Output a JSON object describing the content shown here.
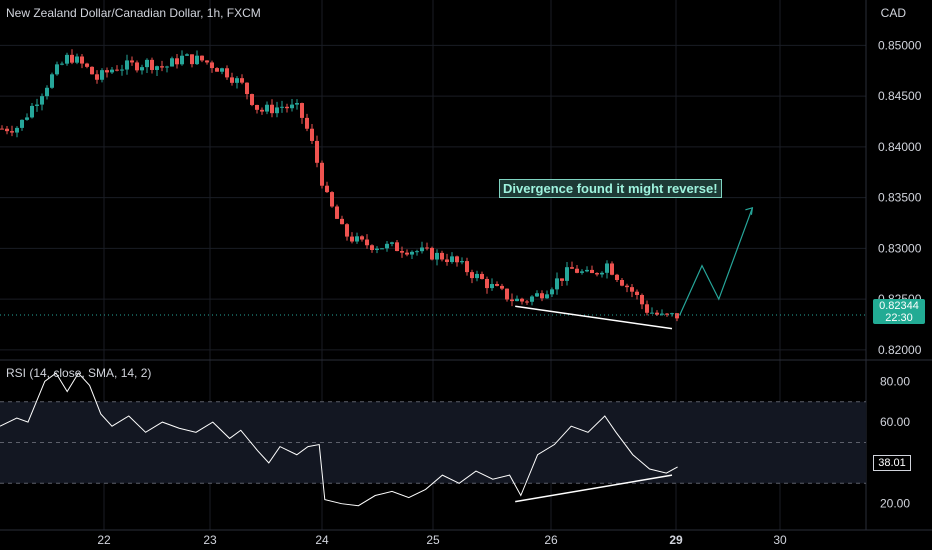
{
  "header": {
    "symbol_title": "New Zealand Dollar/Canadian Dollar, 1h, FXCM",
    "currency": "CAD"
  },
  "annotation": {
    "text": "Divergence found it might reverse!"
  },
  "price_tag": {
    "price": "0.82344",
    "countdown": "22:30"
  },
  "rsi_panel": {
    "title": "RSI (14, close, SMA, 14, 2)",
    "current_label": "38.01"
  },
  "colors": {
    "up": "#26a69a",
    "down": "#ef5350",
    "rsi_band": "#131722",
    "projection": "#26a69a",
    "divergence": "#ffffff"
  },
  "chart_data": [
    {
      "type": "candlestick",
      "title": "New Zealand Dollar/Canadian Dollar, 1h, FXCM",
      "ylabel": "CAD",
      "ylim": [
        0.8195,
        0.8525
      ],
      "x_ticks": [
        "22",
        "23",
        "24",
        "25",
        "26",
        "29",
        "30"
      ],
      "y_ticks": [
        0.82,
        0.825,
        0.83,
        0.835,
        0.84,
        0.845,
        0.85
      ],
      "last_price": 0.82344,
      "close_path": [
        {
          "x": 0.0,
          "y": 0.8418
        },
        {
          "x": 0.3,
          "y": 0.842
        },
        {
          "x": 0.6,
          "y": 0.8445
        },
        {
          "x": 0.9,
          "y": 0.847
        },
        {
          "x": 1.2,
          "y": 0.849
        },
        {
          "x": 1.5,
          "y": 0.8478
        },
        {
          "x": 1.7,
          "y": 0.8467
        },
        {
          "x": 2.0,
          "y": 0.8478
        },
        {
          "x": 2.3,
          "y": 0.848
        },
        {
          "x": 2.6,
          "y": 0.8483
        },
        {
          "x": 2.9,
          "y": 0.8478
        },
        {
          "x": 3.2,
          "y": 0.8488
        },
        {
          "x": 3.6,
          "y": 0.8485
        },
        {
          "x": 4.0,
          "y": 0.8474
        },
        {
          "x": 4.3,
          "y": 0.846
        },
        {
          "x": 4.6,
          "y": 0.8435
        },
        {
          "x": 5.0,
          "y": 0.844
        },
        {
          "x": 5.3,
          "y": 0.8437
        },
        {
          "x": 5.5,
          "y": 0.841
        },
        {
          "x": 5.8,
          "y": 0.835
        },
        {
          "x": 6.1,
          "y": 0.8315
        },
        {
          "x": 6.4,
          "y": 0.8305
        },
        {
          "x": 6.8,
          "y": 0.8302
        },
        {
          "x": 7.2,
          "y": 0.83
        },
        {
          "x": 7.6,
          "y": 0.8295
        },
        {
          "x": 8.0,
          "y": 0.829
        },
        {
          "x": 8.4,
          "y": 0.8275
        },
        {
          "x": 8.8,
          "y": 0.826
        },
        {
          "x": 9.1,
          "y": 0.825
        },
        {
          "x": 9.3,
          "y": 0.8248
        },
        {
          "x": 9.6,
          "y": 0.8255
        },
        {
          "x": 9.9,
          "y": 0.8268
        },
        {
          "x": 10.2,
          "y": 0.828
        },
        {
          "x": 10.5,
          "y": 0.8272
        },
        {
          "x": 10.8,
          "y": 0.8285
        },
        {
          "x": 11.0,
          "y": 0.8272
        },
        {
          "x": 11.3,
          "y": 0.8255
        },
        {
          "x": 11.5,
          "y": 0.824
        },
        {
          "x": 11.8,
          "y": 0.8232
        },
        {
          "x": 12.1,
          "y": 0.8234
        }
      ],
      "projection": [
        {
          "x": 12.1,
          "y": 0.8234
        },
        {
          "x": 12.5,
          "y": 0.8283
        },
        {
          "x": 12.8,
          "y": 0.825
        },
        {
          "x": 13.4,
          "y": 0.834
        }
      ],
      "divergence_line": [
        {
          "x": 9.2,
          "y": 0.8243
        },
        {
          "x": 12.0,
          "y": 0.8221
        }
      ]
    },
    {
      "type": "line",
      "title": "RSI (14, close, SMA, 14, 2)",
      "ylim": [
        12,
        88
      ],
      "y_ticks": [
        20.0,
        40.0,
        60.0,
        80.0
      ],
      "band": [
        30,
        70
      ],
      "midline": 50,
      "last_value": 38.01,
      "values": [
        {
          "x": 0.0,
          "y": 58
        },
        {
          "x": 0.3,
          "y": 62
        },
        {
          "x": 0.5,
          "y": 60
        },
        {
          "x": 0.8,
          "y": 80
        },
        {
          "x": 1.0,
          "y": 84
        },
        {
          "x": 1.2,
          "y": 75
        },
        {
          "x": 1.4,
          "y": 84
        },
        {
          "x": 1.6,
          "y": 78
        },
        {
          "x": 1.8,
          "y": 64
        },
        {
          "x": 2.0,
          "y": 58
        },
        {
          "x": 2.3,
          "y": 63
        },
        {
          "x": 2.6,
          "y": 55
        },
        {
          "x": 2.9,
          "y": 60
        },
        {
          "x": 3.2,
          "y": 57
        },
        {
          "x": 3.5,
          "y": 55
        },
        {
          "x": 3.8,
          "y": 60
        },
        {
          "x": 4.1,
          "y": 52
        },
        {
          "x": 4.3,
          "y": 56
        },
        {
          "x": 4.6,
          "y": 46
        },
        {
          "x": 4.8,
          "y": 40
        },
        {
          "x": 5.0,
          "y": 48
        },
        {
          "x": 5.3,
          "y": 44
        },
        {
          "x": 5.5,
          "y": 48
        },
        {
          "x": 5.7,
          "y": 49
        },
        {
          "x": 5.8,
          "y": 22
        },
        {
          "x": 6.1,
          "y": 20
        },
        {
          "x": 6.4,
          "y": 19
        },
        {
          "x": 6.7,
          "y": 24
        },
        {
          "x": 7.0,
          "y": 26
        },
        {
          "x": 7.3,
          "y": 23
        },
        {
          "x": 7.6,
          "y": 27
        },
        {
          "x": 7.9,
          "y": 34
        },
        {
          "x": 8.2,
          "y": 30
        },
        {
          "x": 8.5,
          "y": 36
        },
        {
          "x": 8.8,
          "y": 32
        },
        {
          "x": 9.1,
          "y": 34
        },
        {
          "x": 9.3,
          "y": 24
        },
        {
          "x": 9.6,
          "y": 44
        },
        {
          "x": 9.9,
          "y": 49
        },
        {
          "x": 10.2,
          "y": 58
        },
        {
          "x": 10.5,
          "y": 55
        },
        {
          "x": 10.8,
          "y": 63
        },
        {
          "x": 11.0,
          "y": 55
        },
        {
          "x": 11.3,
          "y": 44
        },
        {
          "x": 11.6,
          "y": 37
        },
        {
          "x": 11.9,
          "y": 35
        },
        {
          "x": 12.1,
          "y": 38
        }
      ],
      "divergence_line": [
        {
          "x": 9.2,
          "y": 21
        },
        {
          "x": 12.0,
          "y": 34
        }
      ]
    }
  ]
}
